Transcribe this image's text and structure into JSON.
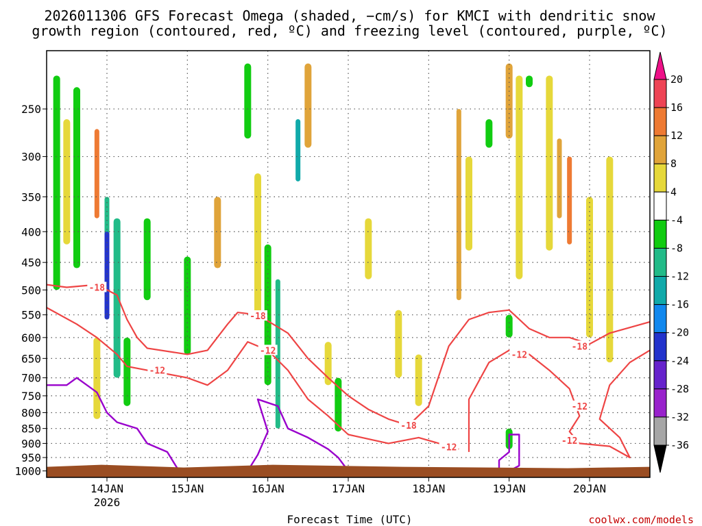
{
  "header": {
    "title_line1": "2026011306 GFS Forecast Omega (shaded, −cm/s) for KMCI with dendritic snow",
    "title_line2": "growth region (contoured, red, ºC) and freezing level (contoured, purple, ºC)"
  },
  "footer": {
    "credit": "coolwx.com/models",
    "xlabel": "Forecast Time (UTC)"
  },
  "colors": {
    "isotherm_red": "#ee4444",
    "freezing_purple": "#9900cc",
    "ground": "#9a4d22",
    "grid": "#555555"
  },
  "chart_data": {
    "type": "heatmap",
    "title": "2026011306 GFS Forecast Omega (shaded, −cm/s) for KMCI with dendritic snow growth region (contoured, red, ºC) and freezing level (contoured, purple, ºC)",
    "xlabel": "Forecast Time (UTC)",
    "ylabel": "",
    "x_range_days": [
      "2026-01-13T06",
      "2026-01-20T18"
    ],
    "x_ticks": [
      {
        "label": "14JAN",
        "sub": "2026",
        "date": "2026-01-14T00"
      },
      {
        "label": "15JAN",
        "sub": "",
        "date": "2026-01-15T00"
      },
      {
        "label": "16JAN",
        "sub": "",
        "date": "2026-01-16T00"
      },
      {
        "label": "17JAN",
        "sub": "",
        "date": "2026-01-17T00"
      },
      {
        "label": "18JAN",
        "sub": "",
        "date": "2026-01-18T00"
      },
      {
        "label": "19JAN",
        "sub": "",
        "date": "2026-01-19T00"
      },
      {
        "label": "20JAN",
        "sub": "",
        "date": "2026-01-20T00"
      }
    ],
    "y_axis": {
      "label": "",
      "units": "hPa",
      "scale": "log",
      "range": [
        1025,
        200
      ],
      "inverted": true
    },
    "y_ticks": [
      250,
      300,
      350,
      400,
      450,
      500,
      550,
      600,
      650,
      700,
      750,
      800,
      850,
      900,
      950,
      1000
    ],
    "grid": true,
    "colorbar": {
      "labels": [
        20,
        16,
        12,
        8,
        4,
        -4,
        -8,
        -12,
        -16,
        -20,
        -24,
        -28,
        -32,
        -36
      ],
      "bins": [
        {
          "range": [
            16,
            20
          ],
          "color": "#ee4455"
        },
        {
          "range": [
            12,
            16
          ],
          "color": "#ee7a33"
        },
        {
          "range": [
            8,
            12
          ],
          "color": "#e0a43a"
        },
        {
          "range": [
            4,
            8
          ],
          "color": "#e6d83a"
        },
        {
          "range": [
            -4,
            4
          ],
          "color": "#ffffff"
        },
        {
          "range": [
            -8,
            -4
          ],
          "color": "#11cc11"
        },
        {
          "range": [
            -12,
            -8
          ],
          "color": "#22bb88"
        },
        {
          "range": [
            -16,
            -12
          ],
          "color": "#11aaaa"
        },
        {
          "range": [
            -20,
            -16
          ],
          "color": "#1188ee"
        },
        {
          "range": [
            -24,
            -20
          ],
          "color": "#2233cc"
        },
        {
          "range": [
            -28,
            -24
          ],
          "color": "#6622cc"
        },
        {
          "range": [
            -32,
            -28
          ],
          "color": "#9922cc"
        },
        {
          "range": [
            -36,
            -32
          ],
          "color": "#a6a6a6"
        }
      ],
      "above_max_color": "#ee1188",
      "below_min_color": "#000000"
    },
    "omega_features": [
      {
        "t": "2026-01-13T09",
        "p0": 220,
        "p1": 500,
        "v": -6
      },
      {
        "t": "2026-01-13T12",
        "p0": 260,
        "p1": 420,
        "v": 5
      },
      {
        "t": "2026-01-13T15",
        "p0": 230,
        "p1": 460,
        "v": -8
      },
      {
        "t": "2026-01-13T21",
        "p0": 270,
        "p1": 380,
        "v": 12
      },
      {
        "t": "2026-01-13T21",
        "p0": 600,
        "p1": 820,
        "v": 5
      },
      {
        "t": "2026-01-14T00",
        "p0": 350,
        "p1": 520,
        "v": -10
      },
      {
        "t": "2026-01-14T00",
        "p0": 400,
        "p1": 560,
        "v": -22
      },
      {
        "t": "2026-01-14T03",
        "p0": 380,
        "p1": 700,
        "v": -9
      },
      {
        "t": "2026-01-14T06",
        "p0": 600,
        "p1": 780,
        "v": -6
      },
      {
        "t": "2026-01-14T12",
        "p0": 380,
        "p1": 520,
        "v": -6
      },
      {
        "t": "2026-01-15T00",
        "p0": 440,
        "p1": 640,
        "v": -5
      },
      {
        "t": "2026-01-15T09",
        "p0": 350,
        "p1": 460,
        "v": 9
      },
      {
        "t": "2026-01-15T18",
        "p0": 210,
        "p1": 280,
        "v": -5
      },
      {
        "t": "2026-01-15T21",
        "p0": 320,
        "p1": 560,
        "v": 5
      },
      {
        "t": "2026-01-16T00",
        "p0": 420,
        "p1": 720,
        "v": -8
      },
      {
        "t": "2026-01-16T03",
        "p0": 480,
        "p1": 850,
        "v": -11
      },
      {
        "t": "2026-01-16T09",
        "p0": 260,
        "p1": 330,
        "v": -14
      },
      {
        "t": "2026-01-16T12",
        "p0": 210,
        "p1": 290,
        "v": 9
      },
      {
        "t": "2026-01-16T18",
        "p0": 610,
        "p1": 720,
        "v": 5
      },
      {
        "t": "2026-01-16T21",
        "p0": 700,
        "p1": 860,
        "v": -6
      },
      {
        "t": "2026-01-17T06",
        "p0": 380,
        "p1": 480,
        "v": 5
      },
      {
        "t": "2026-01-17T15",
        "p0": 540,
        "p1": 700,
        "v": 5
      },
      {
        "t": "2026-01-17T21",
        "p0": 640,
        "p1": 780,
        "v": 5
      },
      {
        "t": "2026-01-18T09",
        "p0": 250,
        "p1": 520,
        "v": 10
      },
      {
        "t": "2026-01-18T12",
        "p0": 300,
        "p1": 430,
        "v": 5
      },
      {
        "t": "2026-01-18T18",
        "p0": 260,
        "p1": 290,
        "v": -6
      },
      {
        "t": "2026-01-19T00",
        "p0": 210,
        "p1": 280,
        "v": 9
      },
      {
        "t": "2026-01-19T00",
        "p0": 550,
        "p1": 600,
        "v": -7
      },
      {
        "t": "2026-01-19T00",
        "p0": 850,
        "p1": 920,
        "v": -8
      },
      {
        "t": "2026-01-19T03",
        "p0": 220,
        "p1": 480,
        "v": 6
      },
      {
        "t": "2026-01-19T06",
        "p0": 220,
        "p1": 230,
        "v": -6
      },
      {
        "t": "2026-01-19T12",
        "p0": 220,
        "p1": 430,
        "v": 6
      },
      {
        "t": "2026-01-19T15",
        "p0": 280,
        "p1": 380,
        "v": 10
      },
      {
        "t": "2026-01-19T18",
        "p0": 300,
        "p1": 420,
        "v": 13
      },
      {
        "t": "2026-01-20T00",
        "p0": 350,
        "p1": 600,
        "v": 5
      },
      {
        "t": "2026-01-20T06",
        "p0": 300,
        "p1": 660,
        "v": 5
      }
    ],
    "isotherms": [
      {
        "label": "-18",
        "color": "#ee4444",
        "points": [
          [
            "2026-01-13T06",
            490
          ],
          [
            "2026-01-13T12",
            495
          ],
          [
            "2026-01-13T21",
            490
          ],
          [
            "2026-01-14T03",
            510
          ],
          [
            "2026-01-14T06",
            560
          ],
          [
            "2026-01-14T09",
            600
          ],
          [
            "2026-01-14T12",
            625
          ],
          [
            "2026-01-15T00",
            640
          ],
          [
            "2026-01-15T06",
            630
          ],
          [
            "2026-01-15T12",
            570
          ],
          [
            "2026-01-15T15",
            545
          ],
          [
            "2026-01-15T21",
            550
          ],
          [
            "2026-01-16T06",
            590
          ],
          [
            "2026-01-16T12",
            650
          ],
          [
            "2026-01-16T18",
            700
          ],
          [
            "2026-01-17T00",
            750
          ],
          [
            "2026-01-17T06",
            790
          ],
          [
            "2026-01-17T12",
            820
          ],
          [
            "2026-01-17T18",
            840
          ],
          [
            "2026-01-18T00",
            780
          ],
          [
            "2026-01-18T06",
            620
          ],
          [
            "2026-01-18T12",
            560
          ],
          [
            "2026-01-18T18",
            545
          ],
          [
            "2026-01-19T00",
            540
          ],
          [
            "2026-01-19T06",
            580
          ],
          [
            "2026-01-19T12",
            600
          ],
          [
            "2026-01-19T18",
            600
          ],
          [
            "2026-01-20T00",
            615
          ],
          [
            "2026-01-20T06",
            590
          ],
          [
            "2026-01-20T18",
            565
          ]
        ]
      },
      {
        "label": "-12",
        "color": "#ee4444",
        "points": [
          [
            "2026-01-13T06",
            535
          ],
          [
            "2026-01-13T15",
            570
          ],
          [
            "2026-01-13T21",
            600
          ],
          [
            "2026-01-14T03",
            640
          ],
          [
            "2026-01-14T06",
            670
          ],
          [
            "2026-01-14T12",
            680
          ],
          [
            "2026-01-15T00",
            700
          ],
          [
            "2026-01-15T06",
            720
          ],
          [
            "2026-01-15T12",
            680
          ],
          [
            "2026-01-15T18",
            610
          ],
          [
            "2026-01-16T00",
            630
          ],
          [
            "2026-01-16T06",
            680
          ],
          [
            "2026-01-16T12",
            760
          ],
          [
            "2026-01-16T18",
            810
          ],
          [
            "2026-01-17T00",
            870
          ],
          [
            "2026-01-17T12",
            900
          ],
          [
            "2026-01-17T21",
            880
          ],
          [
            "2026-01-18T06",
            910
          ],
          [
            "2026-01-18T09",
            920
          ]
        ]
      },
      {
        "label": "-12",
        "color": "#ee4444",
        "points": [
          [
            "2026-01-18T12",
            930
          ],
          [
            "2026-01-18T12",
            760
          ],
          [
            "2026-01-18T18",
            660
          ],
          [
            "2026-01-19T00",
            630
          ],
          [
            "2026-01-19T06",
            640
          ],
          [
            "2026-01-19T12",
            680
          ],
          [
            "2026-01-19T18",
            730
          ],
          [
            "2026-01-19T21",
            810
          ],
          [
            "2026-01-19T18",
            860
          ],
          [
            "2026-01-19T21",
            900
          ],
          [
            "2026-01-20T06",
            910
          ],
          [
            "2026-01-20T12",
            950
          ],
          [
            "2026-01-20T09",
            880
          ],
          [
            "2026-01-20T03",
            820
          ],
          [
            "2026-01-20T06",
            720
          ],
          [
            "2026-01-20T12",
            660
          ],
          [
            "2026-01-20T18",
            630
          ]
        ]
      }
    ],
    "contour_labels": [
      {
        "text": "-18",
        "t": "2026-01-13T21",
        "p": 495
      },
      {
        "text": "-18",
        "t": "2026-01-15T21",
        "p": 552
      },
      {
        "text": "-18",
        "t": "2026-01-17T18",
        "p": 840
      },
      {
        "text": "-18",
        "t": "2026-01-19T21",
        "p": 620
      },
      {
        "text": "-12",
        "t": "2026-01-14T15",
        "p": 680
      },
      {
        "text": "-12",
        "t": "2026-01-16T00",
        "p": 630
      },
      {
        "text": "-12",
        "t": "2026-01-18T06",
        "p": 912
      },
      {
        "text": "-12",
        "t": "2026-01-19T03",
        "p": 640
      },
      {
        "text": "-12",
        "t": "2026-01-19T21",
        "p": 780
      },
      {
        "text": "-12",
        "t": "2026-01-19T18",
        "p": 890
      }
    ],
    "freezing_level": [
      {
        "points": [
          [
            "2026-01-13T06",
            720
          ],
          [
            "2026-01-13T12",
            720
          ],
          [
            "2026-01-13T15",
            700
          ],
          [
            "2026-01-13T21",
            740
          ],
          [
            "2026-01-14T00",
            800
          ],
          [
            "2026-01-14T03",
            830
          ],
          [
            "2026-01-14T09",
            850
          ],
          [
            "2026-01-14T12",
            900
          ],
          [
            "2026-01-14T18",
            930
          ],
          [
            "2026-01-14T21",
            990
          ],
          [
            "2026-01-15T00",
            1000
          ]
        ]
      },
      {
        "points": [
          [
            "2026-01-15T18",
            1000
          ],
          [
            "2026-01-15T21",
            940
          ],
          [
            "2026-01-16T00",
            860
          ],
          [
            "2026-01-15T21",
            760
          ],
          [
            "2026-01-16T03",
            780
          ],
          [
            "2026-01-16T06",
            850
          ],
          [
            "2026-01-16T12",
            880
          ],
          [
            "2026-01-16T18",
            920
          ],
          [
            "2026-01-16T21",
            950
          ],
          [
            "2026-01-17T00",
            1000
          ]
        ]
      },
      {
        "points": [
          [
            "2026-01-18T21",
            1000
          ],
          [
            "2026-01-18T21",
            960
          ],
          [
            "2026-01-19T00",
            930
          ],
          [
            "2026-01-19T00",
            870
          ],
          [
            "2026-01-19T03",
            870
          ],
          [
            "2026-01-19T03",
            980
          ],
          [
            "2026-01-19T00",
            1000
          ]
        ]
      }
    ]
  }
}
